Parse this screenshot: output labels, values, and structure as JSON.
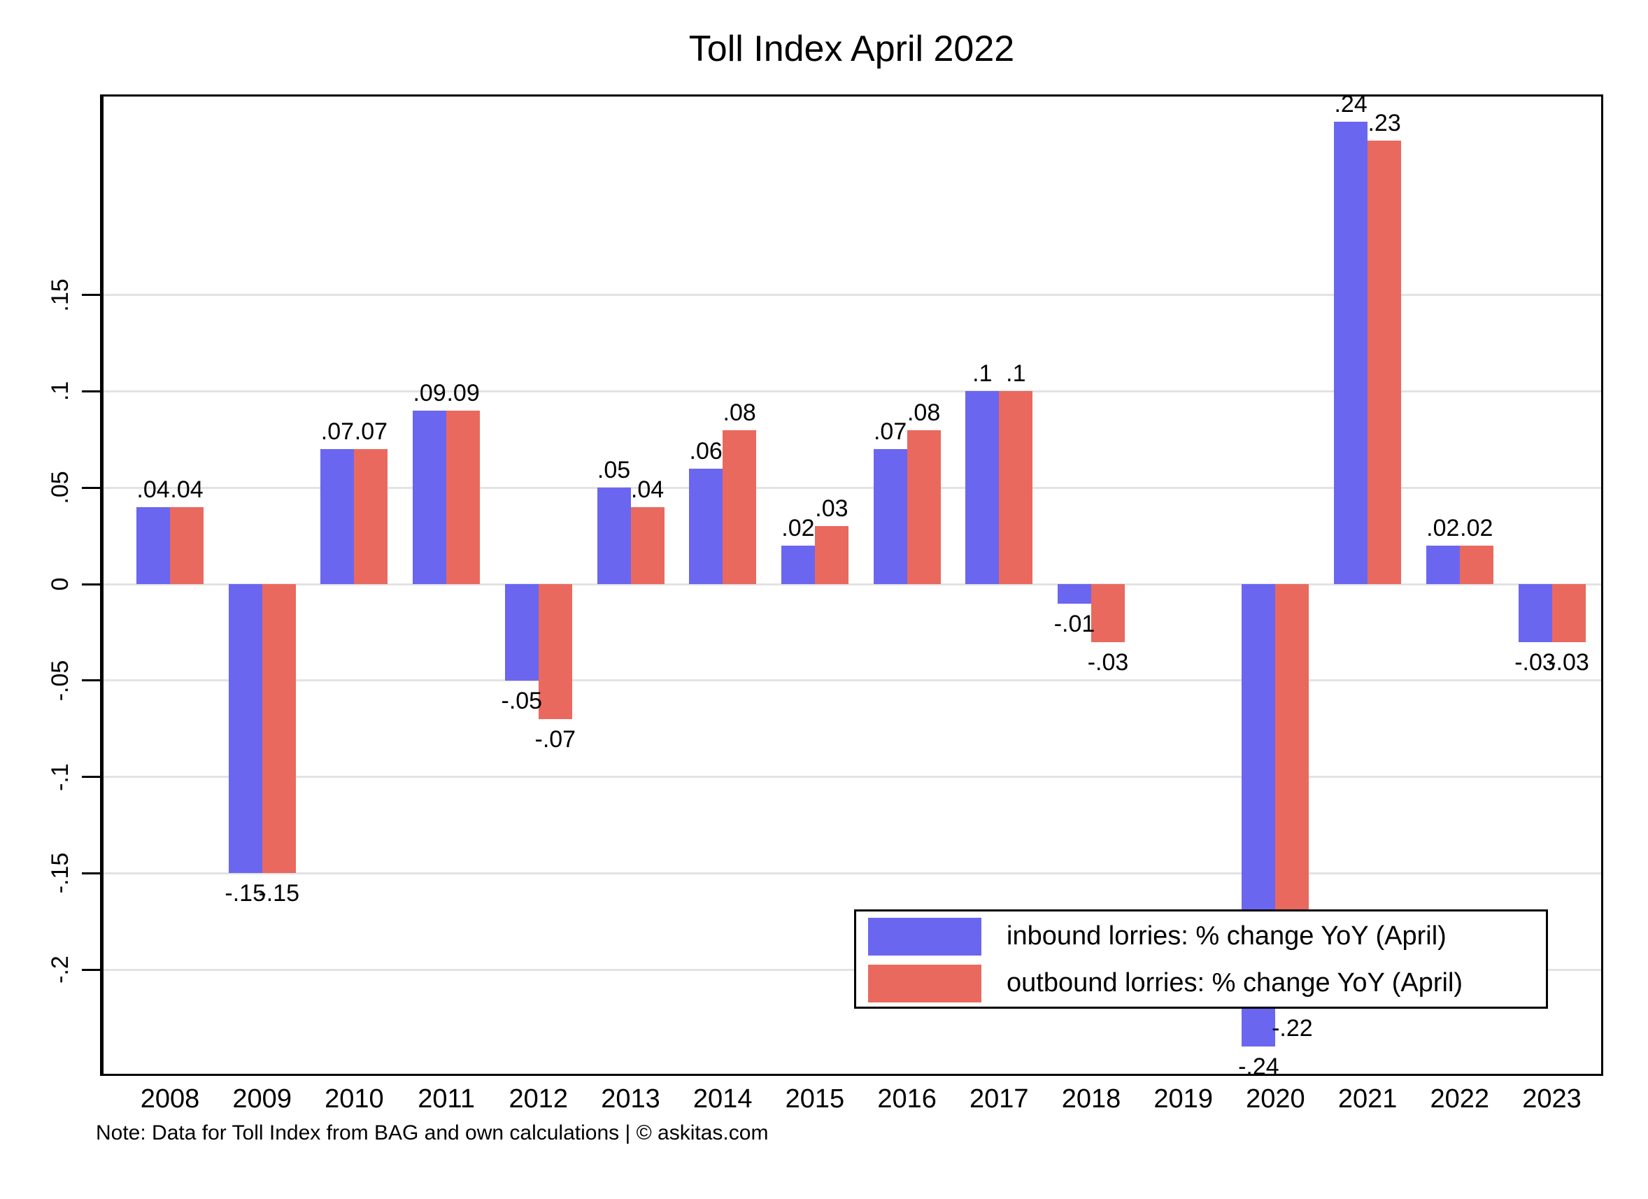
{
  "note": "Note: Data for Toll Index from BAG and own calculations | © askitas.com",
  "colors": {
    "inbound": "#6b66f0",
    "outbound": "#e9695f",
    "grid": "#e3e3e3",
    "axis": "#000000",
    "background": "#ffffff"
  },
  "y_axis": {
    "tick_labels": [
      ".15",
      ".1",
      ".05",
      "0",
      "-.05",
      "-.1",
      "-.15",
      "-.2"
    ],
    "tick_values": [
      0.15,
      0.1,
      0.05,
      0,
      -0.05,
      -0.1,
      -0.15,
      -0.2
    ]
  },
  "chart_data": {
    "type": "bar",
    "title": "Toll Index April 2022",
    "categories": [
      "2008",
      "2009",
      "2010",
      "2011",
      "2012",
      "2013",
      "2014",
      "2015",
      "2016",
      "2017",
      "2018",
      "2019",
      "2020",
      "2021",
      "2022",
      "2023"
    ],
    "series": [
      {
        "name": "inbound lorries: % change YoY (April)",
        "color": "#6b66f0",
        "values": [
          0.04,
          -0.15,
          0.07,
          0.09,
          -0.05,
          0.05,
          0.06,
          0.02,
          0.07,
          0.1,
          -0.01,
          null,
          -0.24,
          0.24,
          0.02,
          -0.03
        ],
        "labels": [
          ".04",
          "-.15",
          ".07",
          ".09",
          "-.05",
          ".05",
          ".06",
          ".02",
          ".07",
          ".1",
          "-.01",
          "",
          "-.24",
          ".24",
          ".02",
          "-.03"
        ]
      },
      {
        "name": "outbound lorries: % change YoY (April)",
        "color": "#e9695f",
        "values": [
          0.04,
          -0.15,
          0.07,
          0.09,
          -0.07,
          0.04,
          0.08,
          0.03,
          0.08,
          0.1,
          -0.03,
          null,
          -0.22,
          0.23,
          0.02,
          -0.03
        ],
        "labels": [
          ".04",
          "-.15",
          ".07",
          ".09",
          "-.07",
          ".04",
          ".08",
          ".03",
          ".08",
          ".1",
          "-.03",
          "",
          "-.22",
          ".23",
          ".02",
          "-.03"
        ]
      }
    ],
    "ylim": [
      -0.2545,
      0.2545
    ],
    "grid": true,
    "legend_position": "inside-bottom-right",
    "xlabel": "",
    "ylabel": ""
  }
}
